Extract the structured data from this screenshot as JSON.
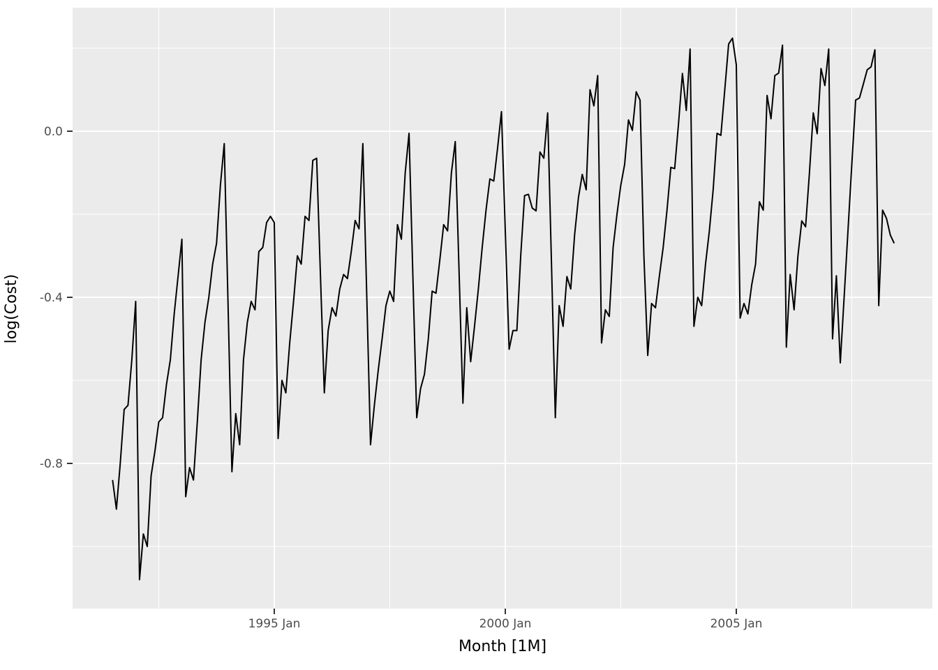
{
  "chart_data": {
    "type": "line",
    "title": "",
    "xlabel": "Month [1M]",
    "ylabel": "log(Cost)",
    "series_name": "log(Cost)",
    "frequency": "monthly",
    "start_month": "1991-07",
    "end_month": "2008-06",
    "values": [
      -0.84,
      -0.91,
      -0.8,
      -0.67,
      -0.66,
      -0.55,
      -0.41,
      -1.08,
      -0.97,
      -1.0,
      -0.83,
      -0.77,
      -0.7,
      -0.69,
      -0.61,
      -0.55,
      -0.44,
      -0.35,
      -0.26,
      -0.88,
      -0.81,
      -0.84,
      -0.7,
      -0.55,
      -0.46,
      -0.4,
      -0.32,
      -0.27,
      -0.13,
      -0.03,
      -0.42,
      -0.82,
      -0.68,
      -0.755,
      -0.55,
      -0.46,
      -0.41,
      -0.43,
      -0.29,
      -0.28,
      -0.22,
      -0.205,
      -0.22,
      -0.74,
      -0.6,
      -0.63,
      -0.51,
      -0.41,
      -0.3,
      -0.32,
      -0.205,
      -0.215,
      -0.07,
      -0.065,
      -0.35,
      -0.63,
      -0.48,
      -0.425,
      -0.445,
      -0.38,
      -0.345,
      -0.355,
      -0.29,
      -0.215,
      -0.235,
      -0.03,
      -0.39,
      -0.755,
      -0.66,
      -0.575,
      -0.5,
      -0.42,
      -0.385,
      -0.41,
      -0.225,
      -0.26,
      -0.1,
      -0.005,
      -0.35,
      -0.69,
      -0.62,
      -0.585,
      -0.5,
      -0.385,
      -0.39,
      -0.31,
      -0.225,
      -0.24,
      -0.1,
      -0.025,
      -0.34,
      -0.655,
      -0.425,
      -0.555,
      -0.47,
      -0.38,
      -0.28,
      -0.19,
      -0.115,
      -0.12,
      -0.04,
      0.047,
      -0.24,
      -0.525,
      -0.48,
      -0.48,
      -0.3,
      -0.155,
      -0.152,
      -0.185,
      -0.192,
      -0.05,
      -0.065,
      0.044,
      -0.32,
      -0.69,
      -0.42,
      -0.47,
      -0.35,
      -0.38,
      -0.25,
      -0.16,
      -0.104,
      -0.141,
      0.1,
      0.061,
      0.134,
      -0.51,
      -0.43,
      -0.446,
      -0.28,
      -0.2,
      -0.13,
      -0.08,
      0.027,
      0.002,
      0.095,
      0.075,
      -0.3,
      -0.54,
      -0.415,
      -0.425,
      -0.35,
      -0.28,
      -0.19,
      -0.087,
      -0.09,
      0.02,
      0.139,
      0.05,
      0.198,
      -0.47,
      -0.4,
      -0.42,
      -0.32,
      -0.24,
      -0.14,
      -0.005,
      -0.01,
      0.1,
      0.21,
      0.224,
      0.16,
      -0.45,
      -0.415,
      -0.44,
      -0.37,
      -0.32,
      -0.17,
      -0.19,
      0.086,
      0.03,
      0.134,
      0.14,
      0.207,
      -0.52,
      -0.345,
      -0.43,
      -0.3,
      -0.216,
      -0.23,
      -0.1,
      0.044,
      -0.006,
      0.151,
      0.11,
      0.198,
      -0.5,
      -0.348,
      -0.558,
      -0.4,
      -0.24,
      -0.08,
      0.075,
      0.08,
      0.114,
      0.148,
      0.155,
      0.196,
      -0.42,
      -0.19,
      -0.21,
      -0.25,
      -0.27
    ],
    "x_ticks": [
      {
        "label": "1995 Jan",
        "month": "1995-01"
      },
      {
        "label": "2000 Jan",
        "month": "2000-01"
      },
      {
        "label": "2005 Jan",
        "month": "2005-01"
      }
    ],
    "x_minor_ticks": [
      "1992-07",
      "1997-07",
      "2002-07",
      "2007-07"
    ],
    "y_ticks": [
      {
        "label": "0.0",
        "value": 0.0
      },
      {
        "label": "-0.4",
        "value": -0.4
      },
      {
        "label": "-0.8",
        "value": -0.8
      }
    ],
    "y_minor_ticks": [
      0.2,
      -0.2,
      -0.6,
      -1.0
    ],
    "ylim_approx": [
      -1.15,
      0.3
    ],
    "grid": true,
    "legend": "none",
    "colors": {
      "line": "#000000",
      "panel_background": "#ebebeb",
      "figure_background": "#ffffff",
      "gridline": "#ffffff",
      "tick_mark": "#333333",
      "tick_text": "#4d4d4d",
      "axis_title_text": "#000000"
    }
  }
}
